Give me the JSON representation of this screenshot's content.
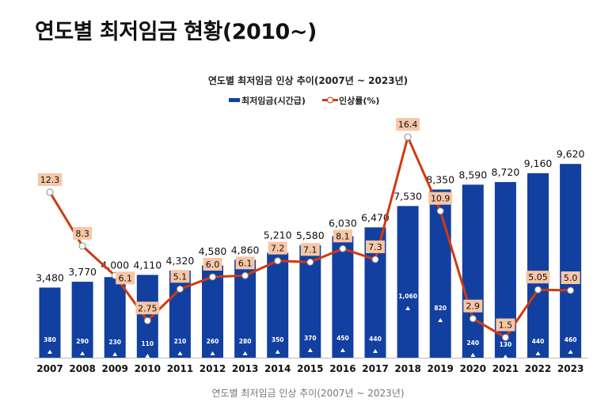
{
  "page_title": "연도별 최저임금 현황(2010~)",
  "caption": "연도별 최저임금 인상 추이(2007년 ~ 2023년)",
  "colors": {
    "bar": "#1240a0",
    "line": "#d03a10",
    "label_bg": "#f6c6a6"
  },
  "chart_data": {
    "type": "bar+line",
    "title": "연도별 최저임금 인상 추이(2007년 ~ 2023년)",
    "legend": [
      "최저임금(시간급)",
      "인상률(%)"
    ],
    "legend_position": "top",
    "grid": false,
    "categories": [
      "2007",
      "2008",
      "2009",
      "2010",
      "2011",
      "2012",
      "2013",
      "2014",
      "2015",
      "2016",
      "2017",
      "2018",
      "2019",
      "2020",
      "2021",
      "2022",
      "2023"
    ],
    "series": [
      {
        "name": "최저임금(시간급)",
        "type": "bar",
        "values": [
          3480,
          3770,
          4000,
          4110,
          4320,
          4580,
          4860,
          5210,
          5580,
          6030,
          6470,
          7530,
          8350,
          8590,
          8720,
          9160,
          9620
        ],
        "labels": [
          "3,480",
          "3,770",
          "4,000",
          "4,110",
          "4,320",
          "4,580",
          "4,860",
          "5,210",
          "5,580",
          "6,030",
          "6,470",
          "7,530",
          "8,350",
          "8,590",
          "8,720",
          "9,160",
          "9,620"
        ]
      },
      {
        "name": "increase",
        "type": "annotation",
        "values": [
          380,
          290,
          230,
          110,
          210,
          260,
          280,
          350,
          370,
          450,
          440,
          1060,
          820,
          240,
          130,
          440,
          460
        ],
        "labels": [
          "380",
          "290",
          "230",
          "110",
          "210",
          "260",
          "280",
          "350",
          "370",
          "450",
          "440",
          "1,060",
          "820",
          "240",
          "130",
          "440",
          "460"
        ]
      },
      {
        "name": "인상률(%)",
        "type": "line",
        "values": [
          12.3,
          8.3,
          6.1,
          2.75,
          5.1,
          6.0,
          6.1,
          7.2,
          7.1,
          8.1,
          7.3,
          16.4,
          10.9,
          2.9,
          1.5,
          5.05,
          5.0
        ],
        "labels": [
          "12.3",
          "8.3",
          "6.1",
          "2.75",
          "5.1",
          "6.0",
          "6.1",
          "7.2",
          "7.1",
          "8.1",
          "7.3",
          "16.4",
          "10.9",
          "2.9",
          "1.5",
          "5.05",
          "5.0"
        ]
      }
    ]
  }
}
